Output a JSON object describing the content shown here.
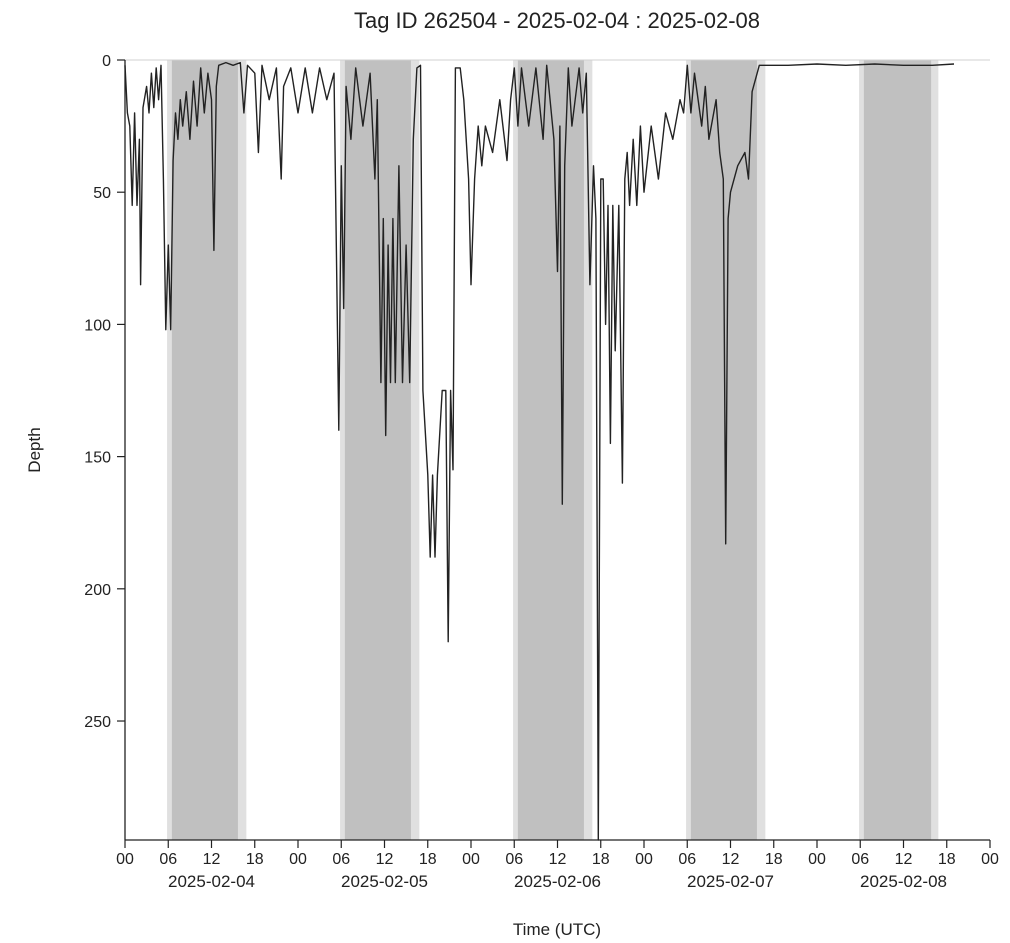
{
  "chart_data": {
    "type": "line",
    "title": "Tag ID 262504 - 2025-02-04 : 2025-02-08",
    "xlabel": "Time (UTC)",
    "ylabel": "Depth",
    "y_reversed": true,
    "ylim": [
      0,
      295
    ],
    "y_ticks": [
      0,
      50,
      100,
      150,
      200,
      250
    ],
    "xlim": [
      "2025-02-04 00:00",
      "2025-02-09 00:00"
    ],
    "x_tick_labels": [
      "00",
      "06",
      "12",
      "18",
      "00",
      "06",
      "12",
      "18",
      "00",
      "06",
      "12",
      "18",
      "00",
      "06",
      "12",
      "18",
      "00",
      "06",
      "12",
      "18",
      "00"
    ],
    "date_labels": [
      "2025-02-04",
      "2025-02-05",
      "2025-02-06",
      "2025-02-07",
      "2025-02-08"
    ],
    "grid": false,
    "shading": {
      "twilight_color": "#e0e0e0",
      "day_color": "#c0c0c0",
      "periods": [
        {
          "dawn": "2025-02-04 05:50",
          "sunrise": "2025-02-04 06:30",
          "sunset": "2025-02-04 15:40",
          "dusk": "2025-02-04 16:50"
        },
        {
          "dawn": "2025-02-05 05:50",
          "sunrise": "2025-02-05 06:30",
          "sunset": "2025-02-05 15:40",
          "dusk": "2025-02-05 16:50"
        },
        {
          "dawn": "2025-02-06 05:50",
          "sunrise": "2025-02-06 06:30",
          "sunset": "2025-02-06 15:40",
          "dusk": "2025-02-06 16:50"
        },
        {
          "dawn": "2025-02-07 05:50",
          "sunrise": "2025-02-07 06:30",
          "sunset": "2025-02-07 15:40",
          "dusk": "2025-02-07 16:50"
        },
        {
          "dawn": "2025-02-08 05:50",
          "sunrise": "2025-02-08 06:30",
          "sunset": "2025-02-08 15:50",
          "dusk": "2025-02-08 16:50"
        }
      ]
    },
    "series": [
      {
        "color": "#222222",
        "points": [
          [
            "2025-02-04 00:00",
            2
          ],
          [
            "2025-02-04 00:20",
            20
          ],
          [
            "2025-02-04 00:40",
            25
          ],
          [
            "2025-02-04 01:00",
            55
          ],
          [
            "2025-02-04 01:20",
            20
          ],
          [
            "2025-02-04 01:40",
            55
          ],
          [
            "2025-02-04 02:00",
            30
          ],
          [
            "2025-02-04 02:10",
            85
          ],
          [
            "2025-02-04 02:30",
            18
          ],
          [
            "2025-02-04 03:00",
            10
          ],
          [
            "2025-02-04 03:20",
            20
          ],
          [
            "2025-02-04 03:40",
            5
          ],
          [
            "2025-02-04 04:00",
            18
          ],
          [
            "2025-02-04 04:20",
            3
          ],
          [
            "2025-02-04 04:40",
            15
          ],
          [
            "2025-02-04 05:00",
            2
          ],
          [
            "2025-02-04 05:20",
            45
          ],
          [
            "2025-02-04 05:40",
            102
          ],
          [
            "2025-02-04 06:00",
            70
          ],
          [
            "2025-02-04 06:20",
            102
          ],
          [
            "2025-02-04 06:40",
            38
          ],
          [
            "2025-02-04 07:00",
            20
          ],
          [
            "2025-02-04 07:20",
            30
          ],
          [
            "2025-02-04 07:40",
            15
          ],
          [
            "2025-02-04 08:00",
            25
          ],
          [
            "2025-02-04 08:30",
            12
          ],
          [
            "2025-02-04 09:00",
            30
          ],
          [
            "2025-02-04 09:30",
            8
          ],
          [
            "2025-02-04 10:00",
            25
          ],
          [
            "2025-02-04 10:30",
            3
          ],
          [
            "2025-02-04 11:00",
            20
          ],
          [
            "2025-02-04 11:30",
            5
          ],
          [
            "2025-02-04 12:00",
            15
          ],
          [
            "2025-02-04 12:20",
            72
          ],
          [
            "2025-02-04 12:40",
            10
          ],
          [
            "2025-02-04 13:00",
            2
          ],
          [
            "2025-02-04 14:00",
            1
          ],
          [
            "2025-02-04 15:00",
            2
          ],
          [
            "2025-02-04 16:00",
            1
          ],
          [
            "2025-02-04 16:30",
            20
          ],
          [
            "2025-02-04 17:00",
            2
          ],
          [
            "2025-02-04 18:00",
            5
          ],
          [
            "2025-02-04 18:30",
            35
          ],
          [
            "2025-02-04 19:00",
            2
          ],
          [
            "2025-02-04 20:00",
            15
          ],
          [
            "2025-02-04 21:00",
            3
          ],
          [
            "2025-02-04 21:40",
            45
          ],
          [
            "2025-02-04 22:00",
            10
          ],
          [
            "2025-02-04 23:00",
            3
          ],
          [
            "2025-02-05 00:00",
            20
          ],
          [
            "2025-02-05 01:00",
            3
          ],
          [
            "2025-02-05 02:00",
            20
          ],
          [
            "2025-02-05 03:00",
            3
          ],
          [
            "2025-02-05 04:00",
            15
          ],
          [
            "2025-02-05 05:00",
            5
          ],
          [
            "2025-02-05 05:40",
            140
          ],
          [
            "2025-02-05 06:00",
            40
          ],
          [
            "2025-02-05 06:20",
            94
          ],
          [
            "2025-02-05 06:40",
            10
          ],
          [
            "2025-02-05 07:20",
            30
          ],
          [
            "2025-02-05 08:00",
            3
          ],
          [
            "2025-02-05 09:00",
            25
          ],
          [
            "2025-02-05 10:00",
            5
          ],
          [
            "2025-02-05 10:40",
            45
          ],
          [
            "2025-02-05 11:00",
            15
          ],
          [
            "2025-02-05 11:30",
            122
          ],
          [
            "2025-02-05 11:50",
            60
          ],
          [
            "2025-02-05 12:10",
            142
          ],
          [
            "2025-02-05 12:30",
            70
          ],
          [
            "2025-02-05 12:50",
            122
          ],
          [
            "2025-02-05 13:10",
            60
          ],
          [
            "2025-02-05 13:30",
            122
          ],
          [
            "2025-02-05 14:00",
            40
          ],
          [
            "2025-02-05 14:30",
            122
          ],
          [
            "2025-02-05 15:00",
            70
          ],
          [
            "2025-02-05 15:30",
            122
          ],
          [
            "2025-02-05 16:00",
            30
          ],
          [
            "2025-02-05 16:30",
            3
          ],
          [
            "2025-02-05 17:00",
            2
          ],
          [
            "2025-02-05 17:20",
            125
          ],
          [
            "2025-02-05 18:00",
            157
          ],
          [
            "2025-02-05 18:20",
            188
          ],
          [
            "2025-02-05 18:40",
            157
          ],
          [
            "2025-02-05 19:00",
            188
          ],
          [
            "2025-02-05 19:20",
            157
          ],
          [
            "2025-02-05 20:00",
            125
          ],
          [
            "2025-02-05 20:30",
            125
          ],
          [
            "2025-02-05 20:50",
            220
          ],
          [
            "2025-02-05 21:10",
            125
          ],
          [
            "2025-02-05 21:30",
            155
          ],
          [
            "2025-02-05 21:50",
            3
          ],
          [
            "2025-02-05 22:30",
            3
          ],
          [
            "2025-02-05 23:00",
            15
          ],
          [
            "2025-02-05 23:40",
            45
          ],
          [
            "2025-02-06 00:00",
            85
          ],
          [
            "2025-02-06 00:30",
            45
          ],
          [
            "2025-02-06 01:00",
            25
          ],
          [
            "2025-02-06 01:30",
            40
          ],
          [
            "2025-02-06 02:00",
            25
          ],
          [
            "2025-02-06 03:00",
            35
          ],
          [
            "2025-02-06 04:00",
            15
          ],
          [
            "2025-02-06 05:00",
            38
          ],
          [
            "2025-02-06 05:30",
            15
          ],
          [
            "2025-02-06 06:00",
            3
          ],
          [
            "2025-02-06 06:30",
            25
          ],
          [
            "2025-02-06 07:00",
            3
          ],
          [
            "2025-02-06 08:00",
            25
          ],
          [
            "2025-02-06 09:00",
            3
          ],
          [
            "2025-02-06 10:00",
            30
          ],
          [
            "2025-02-06 10:30",
            2
          ],
          [
            "2025-02-06 11:30",
            30
          ],
          [
            "2025-02-06 12:00",
            80
          ],
          [
            "2025-02-06 12:20",
            25
          ],
          [
            "2025-02-06 12:40",
            168
          ],
          [
            "2025-02-06 13:00",
            40
          ],
          [
            "2025-02-06 13:30",
            3
          ],
          [
            "2025-02-06 14:00",
            25
          ],
          [
            "2025-02-06 15:00",
            3
          ],
          [
            "2025-02-06 15:30",
            20
          ],
          [
            "2025-02-06 16:00",
            5
          ],
          [
            "2025-02-06 16:30",
            85
          ],
          [
            "2025-02-06 17:00",
            40
          ],
          [
            "2025-02-06 17:20",
            60
          ],
          [
            "2025-02-06 17:40",
            295
          ],
          [
            "2025-02-06 18:00",
            45
          ],
          [
            "2025-02-06 18:20",
            45
          ],
          [
            "2025-02-06 18:40",
            100
          ],
          [
            "2025-02-06 19:00",
            55
          ],
          [
            "2025-02-06 19:20",
            145
          ],
          [
            "2025-02-06 19:40",
            55
          ],
          [
            "2025-02-06 20:00",
            110
          ],
          [
            "2025-02-06 20:30",
            55
          ],
          [
            "2025-02-06 21:00",
            160
          ],
          [
            "2025-02-06 21:20",
            45
          ],
          [
            "2025-02-06 21:40",
            35
          ],
          [
            "2025-02-06 22:00",
            55
          ],
          [
            "2025-02-06 22:30",
            30
          ],
          [
            "2025-02-06 23:00",
            55
          ],
          [
            "2025-02-06 23:30",
            25
          ],
          [
            "2025-02-07 00:00",
            50
          ],
          [
            "2025-02-07 01:00",
            25
          ],
          [
            "2025-02-07 02:00",
            45
          ],
          [
            "2025-02-07 03:00",
            20
          ],
          [
            "2025-02-07 04:00",
            30
          ],
          [
            "2025-02-07 05:00",
            15
          ],
          [
            "2025-02-07 05:30",
            20
          ],
          [
            "2025-02-07 06:00",
            2
          ],
          [
            "2025-02-07 06:30",
            20
          ],
          [
            "2025-02-07 07:00",
            5
          ],
          [
            "2025-02-07 08:00",
            25
          ],
          [
            "2025-02-07 08:30",
            10
          ],
          [
            "2025-02-07 09:00",
            30
          ],
          [
            "2025-02-07 10:00",
            15
          ],
          [
            "2025-02-07 10:30",
            35
          ],
          [
            "2025-02-07 11:00",
            45
          ],
          [
            "2025-02-07 11:20",
            183
          ],
          [
            "2025-02-07 11:40",
            60
          ],
          [
            "2025-02-07 12:00",
            50
          ],
          [
            "2025-02-07 13:00",
            40
          ],
          [
            "2025-02-07 14:00",
            35
          ],
          [
            "2025-02-07 14:30",
            45
          ],
          [
            "2025-02-07 15:00",
            12
          ],
          [
            "2025-02-07 16:00",
            2
          ],
          [
            "2025-02-07 20:00",
            2
          ],
          [
            "2025-02-08 00:00",
            1.5
          ],
          [
            "2025-02-08 04:00",
            2
          ],
          [
            "2025-02-08 08:00",
            1.5
          ],
          [
            "2025-02-08 12:00",
            2
          ],
          [
            "2025-02-08 16:00",
            2
          ],
          [
            "2025-02-08 19:00",
            1.5
          ]
        ]
      }
    ]
  }
}
